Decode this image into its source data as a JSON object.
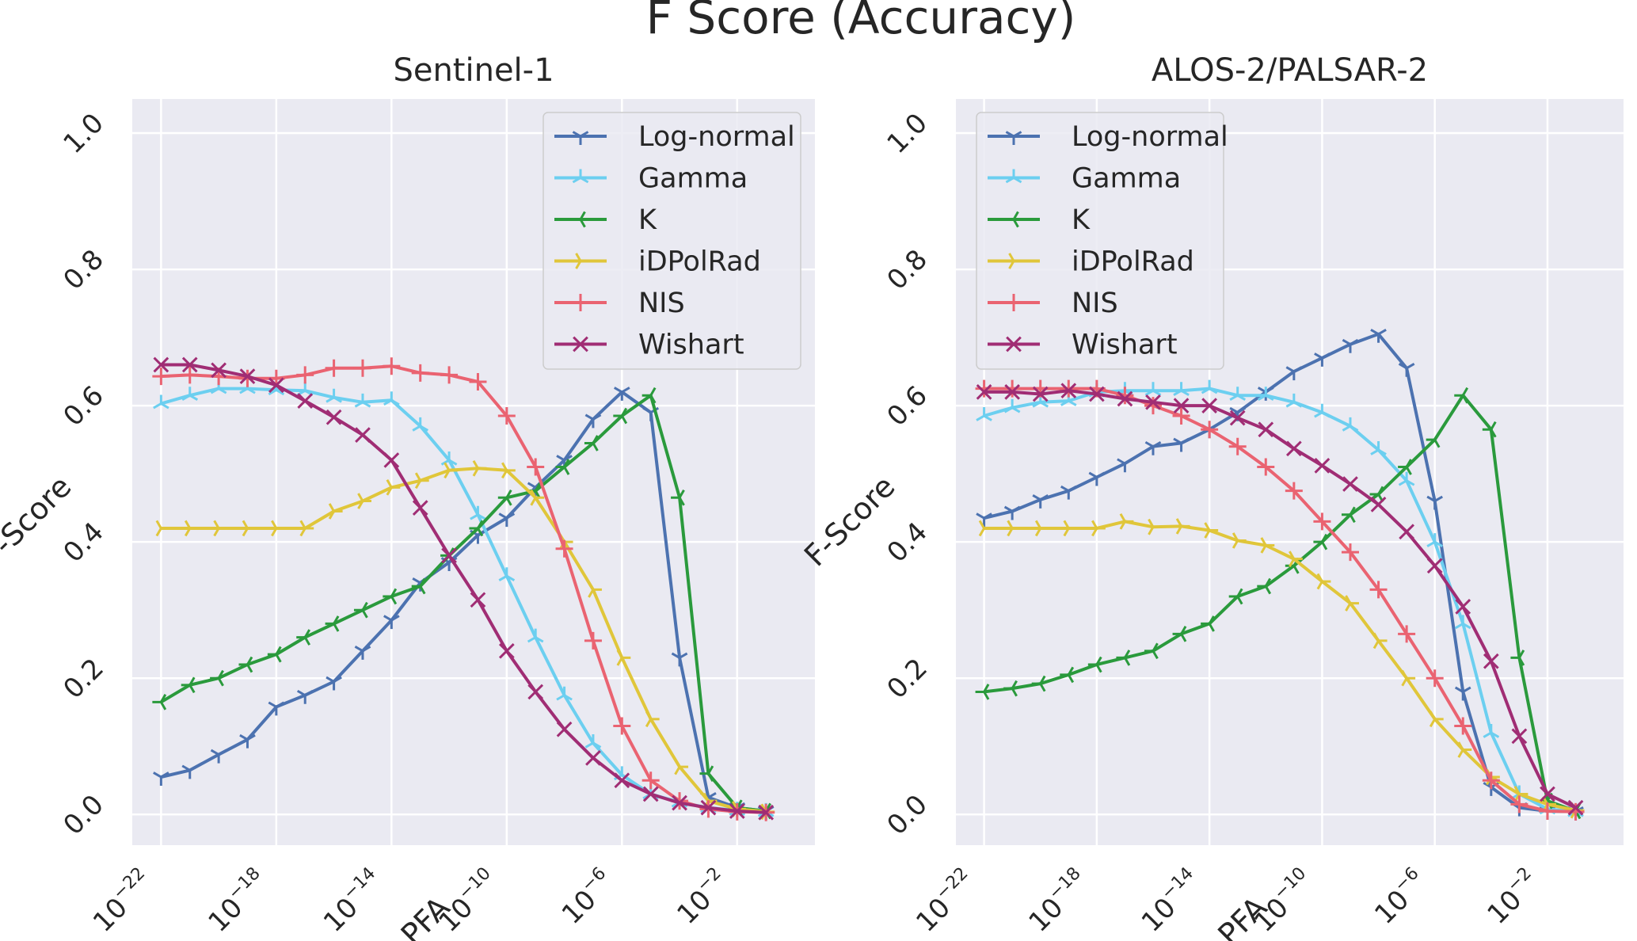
{
  "figure": {
    "title": "F Score (Accuracy)"
  },
  "colors": {
    "panel_bg": "#EAEAF2",
    "grid": "#FFFFFF",
    "text": "#262626",
    "Log-normal": "#4C72B0",
    "Gamma": "#6CCFF0",
    "K": "#2A9A3C",
    "iDPolRad": "#E0C63A",
    "NIS": "#EA6371",
    "Wishart": "#A02D74"
  },
  "chart_data": [
    {
      "type": "line",
      "title": "Sentinel-1",
      "xlabel": "PFA",
      "ylabel": "F-Score",
      "xscale": "log",
      "xlim_log10": [
        -23,
        0.7
      ],
      "ylim": [
        -0.045,
        1.05
      ],
      "xticks": [
        {
          "base": "10",
          "exp": "−22"
        },
        {
          "base": "10",
          "exp": "−18"
        },
        {
          "base": "10",
          "exp": "−14"
        },
        {
          "base": "10",
          "exp": "−10"
        },
        {
          "base": "10",
          "exp": "−6"
        },
        {
          "base": "10",
          "exp": "−2"
        }
      ],
      "xtick_values_log10": [
        -22,
        -18,
        -14,
        -10,
        -6,
        -2
      ],
      "yticks": [
        "0.0",
        "0.2",
        "0.4",
        "0.6",
        "0.8",
        "1.0"
      ],
      "ytick_values": [
        0,
        0.2,
        0.4,
        0.6,
        0.8,
        1.0
      ],
      "grid": true,
      "legend": "upper right",
      "x_log10": [
        -22,
        -21,
        -20,
        -19,
        -18,
        -17,
        -16,
        -15,
        -14,
        -13,
        -12,
        -11,
        -10,
        -9,
        -8,
        -7,
        -6,
        -5,
        -4,
        -3,
        -2,
        -1
      ],
      "series": [
        {
          "name": "Log-normal",
          "marker": "tri_down",
          "values": [
            0.055,
            0.065,
            0.088,
            0.11,
            0.158,
            0.175,
            0.195,
            0.24,
            0.285,
            0.34,
            0.37,
            0.41,
            0.435,
            0.48,
            0.52,
            0.58,
            0.62,
            0.59,
            0.23,
            0.025,
            0.01,
            0.005
          ]
        },
        {
          "name": "Gamma",
          "marker": "tri_up",
          "values": [
            0.603,
            0.615,
            0.625,
            0.625,
            0.623,
            0.622,
            0.612,
            0.605,
            0.608,
            0.57,
            0.52,
            0.44,
            0.35,
            0.26,
            0.175,
            0.105,
            0.058,
            0.03,
            0.018,
            0.01,
            0.006,
            0.004
          ]
        },
        {
          "name": "K",
          "marker": "tri_left",
          "values": [
            0.165,
            0.19,
            0.2,
            0.22,
            0.235,
            0.26,
            0.28,
            0.3,
            0.32,
            0.335,
            0.38,
            0.42,
            0.465,
            0.475,
            0.51,
            0.545,
            0.585,
            0.615,
            0.465,
            0.06,
            0.01,
            0.005
          ]
        },
        {
          "name": "iDPolRad",
          "marker": "tri_right",
          "values": [
            0.42,
            0.42,
            0.42,
            0.42,
            0.42,
            0.42,
            0.445,
            0.46,
            0.48,
            0.49,
            0.505,
            0.508,
            0.505,
            0.465,
            0.4,
            0.33,
            0.23,
            0.14,
            0.07,
            0.02,
            0.008,
            0.004
          ]
        },
        {
          "name": "NIS",
          "marker": "plus",
          "values": [
            0.643,
            0.645,
            0.643,
            0.64,
            0.64,
            0.645,
            0.655,
            0.655,
            0.658,
            0.648,
            0.645,
            0.635,
            0.585,
            0.51,
            0.39,
            0.255,
            0.13,
            0.05,
            0.02,
            0.008,
            0.004,
            0.003
          ]
        },
        {
          "name": "Wishart",
          "marker": "x",
          "values": [
            0.66,
            0.66,
            0.652,
            0.643,
            0.63,
            0.607,
            0.583,
            0.557,
            0.52,
            0.45,
            0.38,
            0.315,
            0.24,
            0.18,
            0.125,
            0.083,
            0.05,
            0.03,
            0.017,
            0.01,
            0.005,
            0.003
          ]
        }
      ]
    },
    {
      "type": "line",
      "title": "ALOS-2/PALSAR-2",
      "xlabel": "PFA",
      "ylabel": "F-Score",
      "xscale": "log",
      "xlim_log10": [
        -23,
        0.7
      ],
      "ylim": [
        -0.045,
        1.05
      ],
      "xticks": [
        {
          "base": "10",
          "exp": "−22"
        },
        {
          "base": "10",
          "exp": "−18"
        },
        {
          "base": "10",
          "exp": "−14"
        },
        {
          "base": "10",
          "exp": "−10"
        },
        {
          "base": "10",
          "exp": "−6"
        },
        {
          "base": "10",
          "exp": "−2"
        }
      ],
      "xtick_values_log10": [
        -22,
        -18,
        -14,
        -10,
        -6,
        -2
      ],
      "yticks": [
        "0.0",
        "0.2",
        "0.4",
        "0.6",
        "0.8",
        "1.0"
      ],
      "ytick_values": [
        0,
        0.2,
        0.4,
        0.6,
        0.8,
        1.0
      ],
      "grid": true,
      "legend": "upper left",
      "x_log10": [
        -22,
        -21,
        -20,
        -19,
        -18,
        -17,
        -16,
        -15,
        -14,
        -13,
        -12,
        -11,
        -10,
        -9,
        -8,
        -7,
        -6,
        -5,
        -4,
        -3,
        -2,
        -1
      ],
      "series": [
        {
          "name": "Log-normal",
          "marker": "tri_down",
          "values": [
            0.435,
            0.445,
            0.462,
            0.475,
            0.495,
            0.515,
            0.54,
            0.545,
            0.565,
            0.59,
            0.62,
            0.65,
            0.67,
            0.69,
            0.705,
            0.655,
            0.46,
            0.18,
            0.04,
            0.01,
            0.005,
            0.004
          ]
        },
        {
          "name": "Gamma",
          "marker": "tri_up",
          "values": [
            0.585,
            0.597,
            0.605,
            0.607,
            0.62,
            0.622,
            0.622,
            0.622,
            0.625,
            0.615,
            0.615,
            0.605,
            0.59,
            0.57,
            0.535,
            0.49,
            0.4,
            0.28,
            0.12,
            0.03,
            0.008,
            0.004
          ]
        },
        {
          "name": "K",
          "marker": "tri_left",
          "values": [
            0.18,
            0.185,
            0.192,
            0.205,
            0.22,
            0.23,
            0.24,
            0.265,
            0.28,
            0.32,
            0.335,
            0.365,
            0.4,
            0.44,
            0.47,
            0.51,
            0.55,
            0.615,
            0.565,
            0.23,
            0.02,
            0.005
          ]
        },
        {
          "name": "iDPolRad",
          "marker": "tri_right",
          "values": [
            0.42,
            0.42,
            0.42,
            0.42,
            0.42,
            0.43,
            0.422,
            0.423,
            0.417,
            0.402,
            0.395,
            0.375,
            0.342,
            0.31,
            0.255,
            0.2,
            0.14,
            0.095,
            0.055,
            0.03,
            0.015,
            0.006
          ]
        },
        {
          "name": "NIS",
          "marker": "plus",
          "values": [
            0.625,
            0.625,
            0.625,
            0.625,
            0.625,
            0.615,
            0.6,
            0.585,
            0.565,
            0.54,
            0.51,
            0.475,
            0.43,
            0.385,
            0.33,
            0.265,
            0.2,
            0.13,
            0.05,
            0.015,
            0.005,
            0.004
          ]
        },
        {
          "name": "Wishart",
          "marker": "x",
          "values": [
            0.62,
            0.62,
            0.617,
            0.622,
            0.617,
            0.61,
            0.605,
            0.6,
            0.6,
            0.582,
            0.565,
            0.537,
            0.512,
            0.485,
            0.455,
            0.415,
            0.365,
            0.305,
            0.225,
            0.115,
            0.03,
            0.01
          ]
        }
      ]
    }
  ]
}
